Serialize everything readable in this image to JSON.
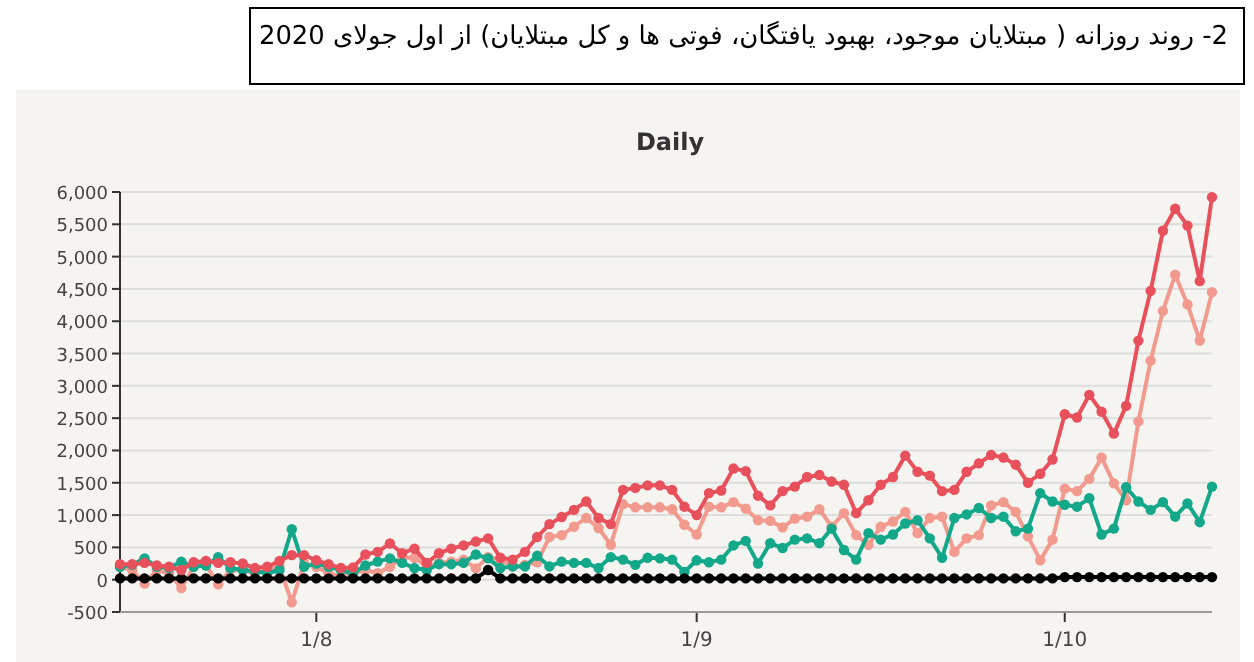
{
  "chart_data": {
    "type": "line",
    "title": "2- روند روزانه ( مبتلایان موجود، بهبود یافتگان، فوتی ها و کل مبتلایان) از اول جولای 2020",
    "subtitle": "Daily",
    "x": [
      "2020-07-16",
      "2020-07-17",
      "2020-07-18",
      "2020-07-19",
      "2020-07-20",
      "2020-07-21",
      "2020-07-22",
      "2020-07-23",
      "2020-07-24",
      "2020-07-25",
      "2020-07-26",
      "2020-07-27",
      "2020-07-28",
      "2020-07-29",
      "2020-07-30",
      "2020-07-31",
      "2020-08-01",
      "2020-08-02",
      "2020-08-03",
      "2020-08-04",
      "2020-08-05",
      "2020-08-06",
      "2020-08-07",
      "2020-08-08",
      "2020-08-09",
      "2020-08-10",
      "2020-08-11",
      "2020-08-12",
      "2020-08-13",
      "2020-08-14",
      "2020-08-15",
      "2020-08-16",
      "2020-08-17",
      "2020-08-18",
      "2020-08-19",
      "2020-08-20",
      "2020-08-21",
      "2020-08-22",
      "2020-08-23",
      "2020-08-24",
      "2020-08-25",
      "2020-08-26",
      "2020-08-27",
      "2020-08-28",
      "2020-08-29",
      "2020-08-30",
      "2020-08-31",
      "2020-09-01",
      "2020-09-02",
      "2020-09-03",
      "2020-09-04",
      "2020-09-05",
      "2020-09-06",
      "2020-09-07",
      "2020-09-08",
      "2020-09-09",
      "2020-09-10",
      "2020-09-11",
      "2020-09-12",
      "2020-09-13",
      "2020-09-14",
      "2020-09-15",
      "2020-09-16",
      "2020-09-17",
      "2020-09-18",
      "2020-09-19",
      "2020-09-20",
      "2020-09-21",
      "2020-09-22",
      "2020-09-23",
      "2020-09-24",
      "2020-09-25",
      "2020-09-26",
      "2020-09-27",
      "2020-09-28",
      "2020-09-29",
      "2020-09-30",
      "2020-10-01",
      "2020-10-02",
      "2020-10-03",
      "2020-10-04",
      "2020-10-05",
      "2020-10-06",
      "2020-10-07",
      "2020-10-08",
      "2020-10-09",
      "2020-10-10",
      "2020-10-11",
      "2020-10-12",
      "2020-10-13"
    ],
    "series": [
      {
        "color": "#f29a8e",
        "values": [
          200,
          150,
          -60,
          150,
          100,
          -130,
          200,
          230,
          -70,
          150,
          150,
          100,
          150,
          200,
          -350,
          250,
          200,
          100,
          50,
          100,
          150,
          100,
          200,
          340,
          340,
          205,
          260,
          280,
          310,
          175,
          350,
          310,
          205,
          230,
          270,
          660,
          690,
          820,
          955,
          800,
          540,
          1170,
          1120,
          1120,
          1120,
          1090,
          850,
          700,
          1130,
          1120,
          1200,
          1100,
          920,
          910,
          810,
          945,
          975,
          1090,
          820,
          1030,
          690,
          540,
          820,
          900,
          1050,
          720,
          955,
          975,
          430,
          640,
          690,
          1150,
          1200,
          1050,
          670,
          300,
          620,
          1410,
          1370,
          1560,
          1890,
          1490,
          1230,
          2450,
          3390,
          4160,
          4720,
          4260,
          3700,
          4450
        ]
      },
      {
        "color": "#14a88a",
        "values": [
          200,
          230,
          330,
          200,
          180,
          280,
          200,
          220,
          350,
          180,
          150,
          130,
          100,
          150,
          780,
          200,
          250,
          200,
          150,
          100,
          220,
          280,
          330,
          260,
          180,
          150,
          240,
          240,
          260,
          390,
          330,
          180,
          205,
          205,
          370,
          205,
          280,
          260,
          260,
          180,
          350,
          310,
          230,
          340,
          330,
          310,
          120,
          300,
          270,
          310,
          530,
          600,
          250,
          565,
          490,
          620,
          640,
          565,
          790,
          460,
          310,
          720,
          620,
          700,
          870,
          920,
          640,
          340,
          955,
          1010,
          1110,
          955,
          975,
          750,
          790,
          1340,
          1210,
          1160,
          1130,
          1260,
          700,
          790,
          1430,
          1210,
          1080,
          1200,
          975,
          1180,
          890,
          1440
        ]
      },
      {
        "color": "#000000",
        "values": [
          20,
          20,
          20,
          20,
          20,
          20,
          20,
          20,
          20,
          20,
          20,
          20,
          20,
          20,
          20,
          20,
          20,
          20,
          20,
          20,
          20,
          20,
          20,
          20,
          20,
          20,
          20,
          20,
          20,
          20,
          150,
          20,
          20,
          20,
          20,
          20,
          20,
          20,
          20,
          20,
          20,
          20,
          20,
          20,
          20,
          20,
          20,
          20,
          20,
          20,
          20,
          20,
          20,
          20,
          20,
          20,
          20,
          20,
          20,
          20,
          20,
          20,
          20,
          20,
          20,
          20,
          20,
          20,
          20,
          20,
          20,
          20,
          20,
          20,
          20,
          20,
          20,
          40,
          40,
          40,
          40,
          40,
          40,
          40,
          40,
          40,
          40,
          40,
          40,
          40
        ]
      },
      {
        "color": "#e8505b",
        "values": [
          240,
          240,
          260,
          220,
          200,
          150,
          270,
          290,
          260,
          270,
          250,
          180,
          200,
          290,
          380,
          380,
          300,
          240,
          180,
          190,
          390,
          430,
          560,
          410,
          480,
          260,
          410,
          480,
          530,
          590,
          640,
          340,
          310,
          430,
          660,
          860,
          970,
          1080,
          1210,
          955,
          860,
          1390,
          1420,
          1460,
          1460,
          1390,
          1130,
          1000,
          1340,
          1380,
          1720,
          1680,
          1300,
          1150,
          1370,
          1440,
          1590,
          1620,
          1520,
          1470,
          1030,
          1230,
          1470,
          1590,
          1920,
          1670,
          1610,
          1370,
          1390,
          1670,
          1800,
          1930,
          1890,
          1780,
          1500,
          1640,
          1860,
          2560,
          2510,
          2860,
          2600,
          2260,
          2690,
          3700,
          4470,
          5400,
          5740,
          5480,
          4620,
          5920
        ]
      }
    ],
    "xlim": [
      "2020-07-16",
      "2020-10-13"
    ],
    "xticks": [
      {
        "value": "2020-08-01",
        "label": "1/8"
      },
      {
        "value": "2020-09-01",
        "label": "1/9"
      },
      {
        "value": "2020-10-01",
        "label": "1/10"
      }
    ],
    "ylim": [
      -500,
      6000
    ],
    "yticks": [
      -500,
      0,
      500,
      {
        "value": 1000,
        "label": "1,000"
      },
      {
        "value": 1500,
        "label": "1,500"
      },
      {
        "value": 2000,
        "label": "2,000"
      },
      {
        "value": 2500,
        "label": "2,500"
      },
      {
        "value": 3000,
        "label": "3,000"
      },
      {
        "value": 3500,
        "label": "3,500"
      },
      {
        "value": 4000,
        "label": "4,000"
      },
      {
        "value": 4500,
        "label": "4,500"
      },
      {
        "value": 5000,
        "label": "5,000"
      },
      {
        "value": 5500,
        "label": "5,500"
      },
      {
        "value": 6000,
        "label": "6,000"
      }
    ],
    "grid": "y",
    "marker": "circle",
    "line_style": "solid"
  }
}
